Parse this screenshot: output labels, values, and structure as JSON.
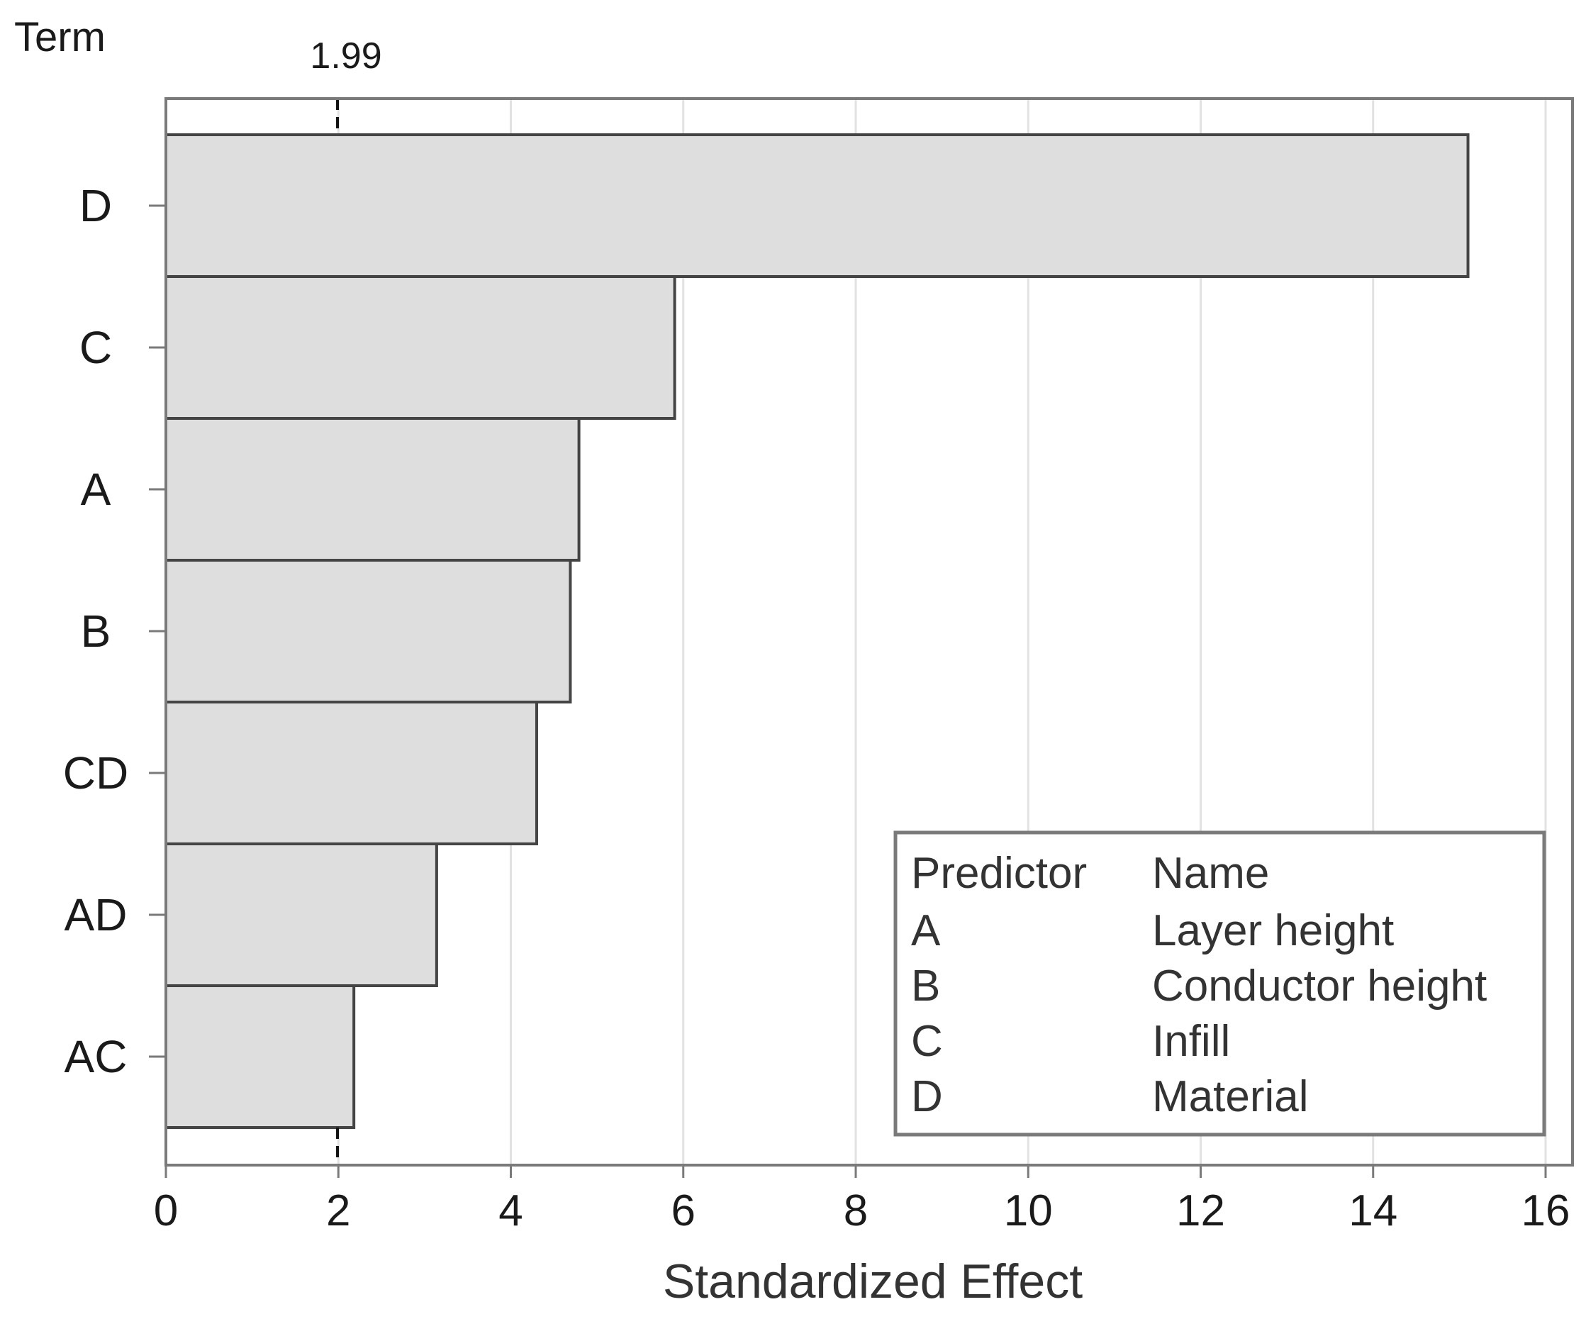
{
  "chart_data": {
    "type": "bar",
    "orientation": "horizontal",
    "title": "",
    "xlabel": "Standardized Effect",
    "ylabel": "Term",
    "xlim": [
      0,
      16
    ],
    "xticks": [
      0,
      2,
      4,
      6,
      8,
      10,
      12,
      14,
      16
    ],
    "grid": true,
    "categories": [
      "D",
      "C",
      "A",
      "B",
      "CD",
      "AD",
      "AC"
    ],
    "values": [
      15.1,
      5.9,
      4.79,
      4.69,
      4.3,
      3.14,
      2.18
    ],
    "reference_line": {
      "value": 1.99,
      "label": "1.99",
      "style": "dashed"
    },
    "legend": {
      "placement": "bottom-right",
      "headers": [
        "Predictor",
        "Name"
      ],
      "rows": [
        [
          "A",
          "Layer height"
        ],
        [
          "B",
          "Conductor height"
        ],
        [
          "C",
          "Infill"
        ],
        [
          "D",
          "Material"
        ]
      ]
    },
    "colors": {
      "bar_fill": "#dedede",
      "bar_stroke": "#444444",
      "frame": "#7a7a7a",
      "grid": "#e2e2e2",
      "text": "#1a1a1a",
      "legend_text": "#333333"
    }
  }
}
